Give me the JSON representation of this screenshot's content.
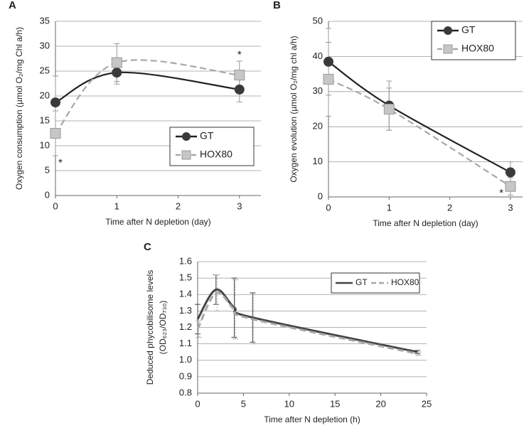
{
  "chart_data": [
    {
      "type": "line",
      "panel": "A",
      "ylabel": "Oxygen consumption (µmol O₂/mg Chl a/h)",
      "xlabel": "Time after N depletion (day)",
      "x": [
        0,
        1,
        3
      ],
      "xlim": [
        0,
        3.35
      ],
      "xticks": [
        0,
        1,
        2,
        3
      ],
      "ylim": [
        0,
        35
      ],
      "yticks": [
        0,
        5,
        10,
        15,
        20,
        25,
        30,
        35
      ],
      "grid": true,
      "legend": "lower right",
      "smooth": true,
      "series": [
        {
          "name": "GT",
          "color": "#222222",
          "marker": "circle",
          "dash": false,
          "values": [
            18.7,
            24.7,
            21.3
          ],
          "errors": [
            5.3,
            2.3,
            2.5
          ]
        },
        {
          "name": "HOX80",
          "color": "#a8a8a8",
          "marker": "square",
          "dash": true,
          "values": [
            12.5,
            26.7,
            24.2
          ],
          "errors": [
            4.5,
            3.8,
            2.8
          ]
        }
      ],
      "annotations": [
        {
          "text": "*",
          "x": 0.08,
          "y": 6.5
        },
        {
          "text": "*",
          "x": 3,
          "y": 28.2
        }
      ]
    },
    {
      "type": "line",
      "panel": "B",
      "ylabel": "Oxygen evolution (µmol O₂/mg chl a/h)",
      "xlabel": "Time after N depletion (day)",
      "x": [
        0,
        1,
        3
      ],
      "xlim": [
        0,
        3.2
      ],
      "xticks": [
        0,
        1,
        2,
        3
      ],
      "ylim": [
        0,
        50
      ],
      "yticks": [
        0,
        10,
        20,
        30,
        40,
        50
      ],
      "grid": true,
      "legend": "upper right",
      "smooth": true,
      "series": [
        {
          "name": "GT",
          "color": "#222222",
          "marker": "circle",
          "dash": false,
          "values": [
            38.5,
            26,
            7
          ],
          "errors": [
            9.5,
            7,
            3
          ]
        },
        {
          "name": "HOX80",
          "color": "#a8a8a8",
          "marker": "square",
          "dash": true,
          "values": [
            33.5,
            25,
            3
          ],
          "errors": [
            10.5,
            6,
            2.5
          ]
        }
      ],
      "annotations": [
        {
          "text": "*",
          "x": 2.85,
          "y": 1
        }
      ]
    },
    {
      "type": "line",
      "panel": "C",
      "ylabel": [
        "Deduced phycobilisome levels",
        "(OD₆₂₃/OD₇₃₀)"
      ],
      "xlabel": "Time after N depletion (h)",
      "x": [
        0,
        2,
        4,
        6,
        24
      ],
      "xlim": [
        0,
        25
      ],
      "xticks": [
        0,
        5,
        10,
        15,
        20,
        25
      ],
      "ylim": [
        0.8,
        1.6
      ],
      "yticks": [
        0.8,
        0.9,
        {
          "value": 1,
          "label": "1.0"
        },
        1.1,
        1.2,
        1.3,
        1.4,
        1.5,
        1.6
      ],
      "grid": true,
      "legend": "upper right",
      "smooth": true,
      "series": [
        {
          "name": "GT",
          "color": "#444444",
          "dash": false,
          "values": [
            1.25,
            1.43,
            1.32,
            1.26,
            1.05
          ],
          "errors": [
            0.09,
            0.09,
            0.18,
            0.15,
            0.01
          ]
        },
        {
          "name": "HOX80",
          "color": "#a8a8a8",
          "dash": true,
          "values": [
            1.19,
            1.41,
            1.31,
            1.25,
            1.04
          ],
          "errors": [
            0.05,
            0.11,
            0.18,
            0.15,
            0.01
          ]
        }
      ]
    }
  ]
}
